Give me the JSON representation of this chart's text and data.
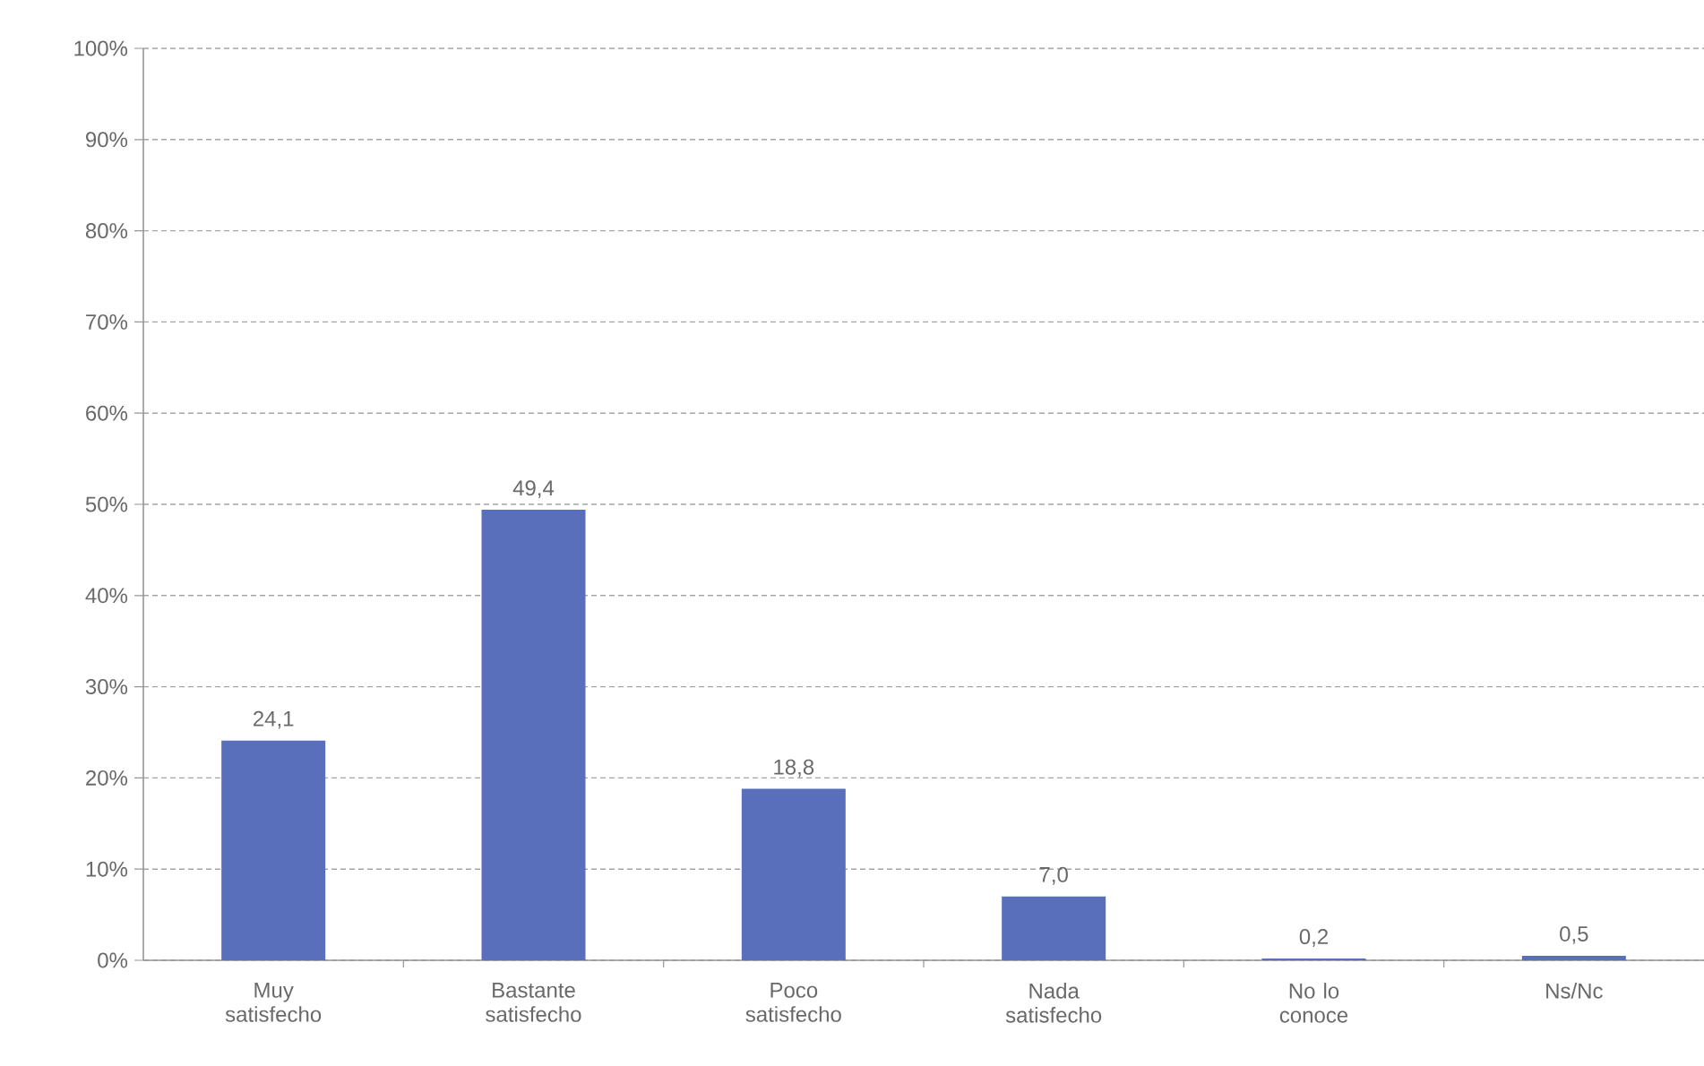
{
  "chart_data": {
    "type": "bar",
    "categories": [
      "Muy satisfecho",
      "Bastante satisfecho",
      "Poco satisfecho",
      "Nada satisfecho",
      "No lo conoce",
      "Ns/Nc"
    ],
    "values": [
      24.1,
      49.4,
      18.8,
      7.0,
      0.2,
      0.5
    ],
    "color": "#5a6fbc",
    "value_labels": [
      "24,1",
      "49,4",
      "18,8",
      "7,0",
      "0,2",
      "0,5"
    ],
    "ylim": [
      0,
      100
    ],
    "yticks": [
      {
        "value": 0,
        "label": "0%"
      },
      {
        "value": 10,
        "label": "10%"
      },
      {
        "value": 20,
        "label": "20%"
      },
      {
        "value": 30,
        "label": "30%"
      },
      {
        "value": 40,
        "label": "40%"
      },
      {
        "value": 50,
        "label": "50%"
      },
      {
        "value": 60,
        "label": "60%"
      },
      {
        "value": 70,
        "label": "70%"
      },
      {
        "value": 80,
        "label": "80%"
      },
      {
        "value": 90,
        "label": "90%"
      },
      {
        "value": 100,
        "label": "100%"
      }
    ],
    "grid": "y"
  }
}
